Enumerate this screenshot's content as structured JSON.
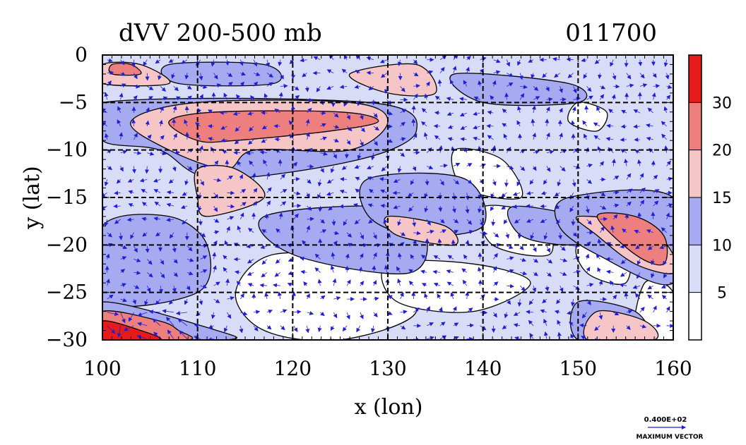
{
  "chart_data": {
    "type": "heatmap",
    "title": "dVV 200-500 mb",
    "date_label": "011700",
    "xlabel": "x (lon)",
    "ylabel": "y (lat)",
    "xlim": [
      100,
      160
    ],
    "ylim": [
      -30,
      0
    ],
    "x_ticks": [
      "100",
      "110",
      "120",
      "130",
      "140",
      "150",
      "160"
    ],
    "y_ticks": [
      "0",
      "−5",
      "−10",
      "−15",
      "−20",
      "−25",
      "−30"
    ],
    "x_tick_values": [
      100,
      110,
      120,
      130,
      140,
      150,
      160
    ],
    "y_tick_values": [
      0,
      -5,
      -10,
      -15,
      -20,
      -25,
      -30
    ],
    "grid": true,
    "grid_style": "dashed",
    "colorbar": {
      "levels": [
        0,
        5,
        10,
        15,
        20,
        30,
        35
      ],
      "labels": [
        "5",
        "10",
        "15",
        "20",
        "30"
      ],
      "label_values": [
        5,
        10,
        15,
        20,
        30
      ],
      "colors": [
        "#ffffff",
        "#d9dcf7",
        "#a6aaf0",
        "#f6c6c6",
        "#ee7f7f",
        "#e61a1a"
      ]
    },
    "vector_legend": {
      "value": "0.400E+02",
      "label": "MAXIMUM VECTOR",
      "color": "#1f1fd6"
    },
    "regions": [
      {
        "level": 1,
        "points": [
          [
            100,
            -30
          ],
          [
            100,
            0
          ],
          [
            160,
            0
          ],
          [
            160,
            -30
          ]
        ]
      },
      {
        "level": 0,
        "points": [
          [
            118,
            -21
          ],
          [
            128,
            -22
          ],
          [
            133,
            -27
          ],
          [
            125,
            -30
          ],
          [
            117,
            -29
          ],
          [
            114,
            -25
          ]
        ]
      },
      {
        "level": 0,
        "points": [
          [
            140,
            -16
          ],
          [
            146,
            -17
          ],
          [
            147,
            -21
          ],
          [
            141,
            -20
          ]
        ]
      },
      {
        "level": 0,
        "points": [
          [
            137,
            -10
          ],
          [
            142,
            -11
          ],
          [
            144,
            -15
          ],
          [
            138,
            -14
          ]
        ]
      },
      {
        "level": 0,
        "points": [
          [
            130,
            -22
          ],
          [
            139,
            -22
          ],
          [
            145,
            -24
          ],
          [
            139,
            -27
          ],
          [
            131,
            -26
          ]
        ]
      },
      {
        "level": 0,
        "points": [
          [
            150,
            -20
          ],
          [
            155,
            -20
          ],
          [
            155,
            -24
          ],
          [
            151,
            -23
          ]
        ]
      },
      {
        "level": 0,
        "points": [
          [
            157,
            -24
          ],
          [
            160,
            -25
          ],
          [
            160,
            -30
          ],
          [
            156,
            -30
          ]
        ]
      },
      {
        "level": 0,
        "points": [
          [
            150,
            -5
          ],
          [
            153,
            -6
          ],
          [
            152,
            -8
          ],
          [
            149,
            -7
          ]
        ]
      },
      {
        "level": 2,
        "points": [
          [
            100,
            -5
          ],
          [
            128,
            -5
          ],
          [
            133,
            -8
          ],
          [
            127,
            -11
          ],
          [
            112,
            -13
          ],
          [
            106,
            -10
          ],
          [
            100,
            -9
          ]
        ]
      },
      {
        "level": 2,
        "points": [
          [
            100,
            -18
          ],
          [
            107,
            -17
          ],
          [
            111,
            -20
          ],
          [
            110,
            -25
          ],
          [
            100,
            -26
          ]
        ]
      },
      {
        "level": 2,
        "points": [
          [
            100,
            -26
          ],
          [
            112,
            -29
          ],
          [
            113,
            -30
          ],
          [
            100,
            -30
          ]
        ]
      },
      {
        "level": 2,
        "points": [
          [
            117,
            -17
          ],
          [
            130,
            -16
          ],
          [
            134,
            -19
          ],
          [
            132,
            -23
          ],
          [
            120,
            -21
          ]
        ]
      },
      {
        "level": 2,
        "points": [
          [
            128,
            -13
          ],
          [
            138,
            -13
          ],
          [
            140,
            -18
          ],
          [
            133,
            -19
          ],
          [
            128,
            -17
          ]
        ]
      },
      {
        "level": 2,
        "points": [
          [
            143,
            -16
          ],
          [
            150,
            -17
          ],
          [
            153,
            -19
          ],
          [
            149,
            -20
          ],
          [
            144,
            -19
          ]
        ]
      },
      {
        "level": 2,
        "points": [
          [
            149,
            -15
          ],
          [
            160,
            -15
          ],
          [
            160,
            -24
          ],
          [
            152,
            -21
          ],
          [
            148,
            -18
          ]
        ]
      },
      {
        "level": 2,
        "points": [
          [
            137,
            -2
          ],
          [
            149,
            -3
          ],
          [
            150,
            -5
          ],
          [
            140,
            -5
          ]
        ]
      },
      {
        "level": 2,
        "points": [
          [
            107,
            -1
          ],
          [
            117,
            -1
          ],
          [
            118,
            -3
          ],
          [
            108,
            -3
          ]
        ]
      },
      {
        "level": 2,
        "points": [
          [
            150,
            -26
          ],
          [
            156,
            -27
          ],
          [
            157,
            -30
          ],
          [
            150,
            -30
          ]
        ]
      },
      {
        "level": 3,
        "points": [
          [
            100,
            -1
          ],
          [
            104,
            -1
          ],
          [
            107,
            -3
          ],
          [
            100,
            -3
          ]
        ]
      },
      {
        "level": 3,
        "points": [
          [
            103,
            -7
          ],
          [
            110,
            -5
          ],
          [
            126,
            -5
          ],
          [
            130,
            -7
          ],
          [
            126,
            -10
          ],
          [
            116,
            -10
          ],
          [
            113,
            -12
          ],
          [
            107,
            -10
          ]
        ]
      },
      {
        "level": 3,
        "points": [
          [
            110,
            -12
          ],
          [
            114,
            -12
          ],
          [
            117,
            -15
          ],
          [
            111,
            -17
          ],
          [
            110,
            -15
          ]
        ]
      },
      {
        "level": 3,
        "points": [
          [
            126,
            -2
          ],
          [
            133,
            -1
          ],
          [
            135,
            -4
          ],
          [
            130,
            -4
          ]
        ]
      },
      {
        "level": 3,
        "points": [
          [
            130,
            -17
          ],
          [
            136,
            -18
          ],
          [
            137,
            -20
          ],
          [
            131,
            -19
          ]
        ]
      },
      {
        "level": 3,
        "points": [
          [
            150,
            -17
          ],
          [
            157,
            -18
          ],
          [
            160,
            -21
          ],
          [
            160,
            -23
          ],
          [
            156,
            -22
          ],
          [
            152,
            -19
          ]
        ]
      },
      {
        "level": 3,
        "points": [
          [
            152,
            -27
          ],
          [
            157,
            -28
          ],
          [
            158,
            -30
          ],
          [
            151,
            -30
          ]
        ]
      },
      {
        "level": 4,
        "points": [
          [
            107,
            -7
          ],
          [
            112,
            -6
          ],
          [
            125,
            -6
          ],
          [
            129,
            -7
          ],
          [
            124,
            -8
          ],
          [
            114,
            -9
          ],
          [
            110,
            -9
          ]
        ]
      },
      {
        "level": 4,
        "points": [
          [
            152,
            -17
          ],
          [
            156,
            -17
          ],
          [
            159,
            -19
          ],
          [
            159,
            -22
          ],
          [
            156,
            -21
          ]
        ]
      },
      {
        "level": 4,
        "points": [
          [
            100,
            -27
          ],
          [
            106,
            -28
          ],
          [
            108,
            -29
          ],
          [
            109,
            -30
          ],
          [
            100,
            -30
          ]
        ]
      },
      {
        "level": 4,
        "points": [
          [
            101,
            -1
          ],
          [
            103,
            -1
          ],
          [
            104,
            -2
          ],
          [
            101,
            -2
          ]
        ]
      },
      {
        "level": 5,
        "points": [
          [
            100,
            -28
          ],
          [
            104,
            -29
          ],
          [
            106,
            -30
          ],
          [
            100,
            -30
          ]
        ]
      }
    ]
  }
}
